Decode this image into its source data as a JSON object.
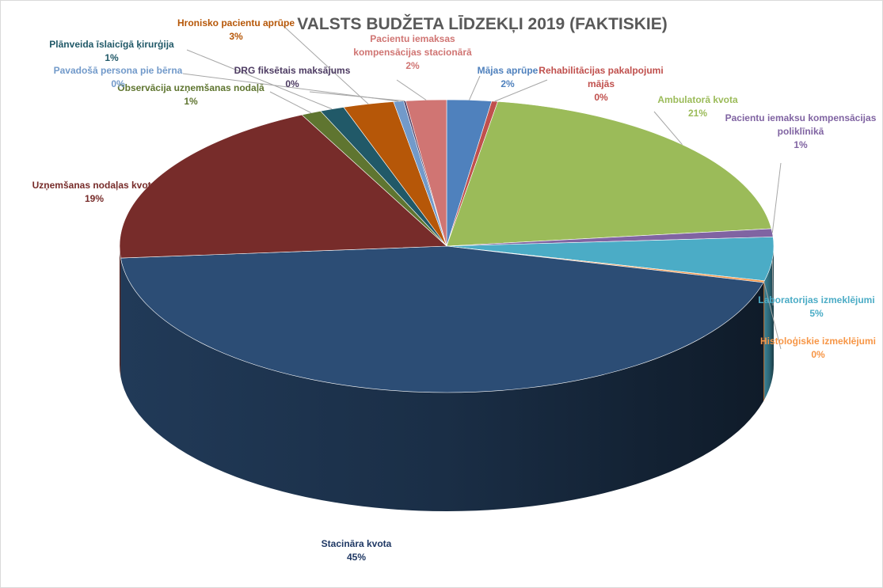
{
  "chart_data": {
    "type": "pie3d",
    "title": "VALSTS BUDŽETA LĪDZEKĻI 2019 (FAKTISKIE)",
    "categories": [
      "Mājas aprūpe",
      "Rehabilitācijas pakalpojumi mājās",
      "Ambulatorā kvota",
      "Pacientu iemaksu kompensācijas poliklīnikā",
      "Laboratorijas izmeklējumi",
      "Histoloģiskie izmeklējumi",
      "Stacināra kvota",
      "Uzņemšanas nodaļas kvota",
      "Observācija uzņemšanas nodaļā",
      "Plānveida īslaicīgā ķirurģija",
      "Hronisko pacientu aprūpe",
      "Pavadošā persona pie bērna",
      "DRG fiksētais maksājums",
      "Pacientu iemaksas kompensācijas stacionārā"
    ],
    "values": [
      2.2,
      0.3,
      20.6,
      0.9,
      4.8,
      0.2,
      44.7,
      19.0,
      1.0,
      1.2,
      2.5,
      0.5,
      0.1,
      2.0
    ],
    "value_labels": [
      "2%",
      "0%",
      "21%",
      "1%",
      "5%",
      "0%",
      "45%",
      "19%",
      "1%",
      "1%",
      "3%",
      "0%",
      "0%",
      "2%"
    ],
    "colors": [
      "#4f81bd",
      "#c0504d",
      "#9bbb59",
      "#8064a2",
      "#4bacc6",
      "#f79646",
      "#2c4d75",
      "#772c2a",
      "#5f7530",
      "#215968",
      "#b65708",
      "#729aca",
      "#4d3b62",
      "#d07573"
    ]
  }
}
